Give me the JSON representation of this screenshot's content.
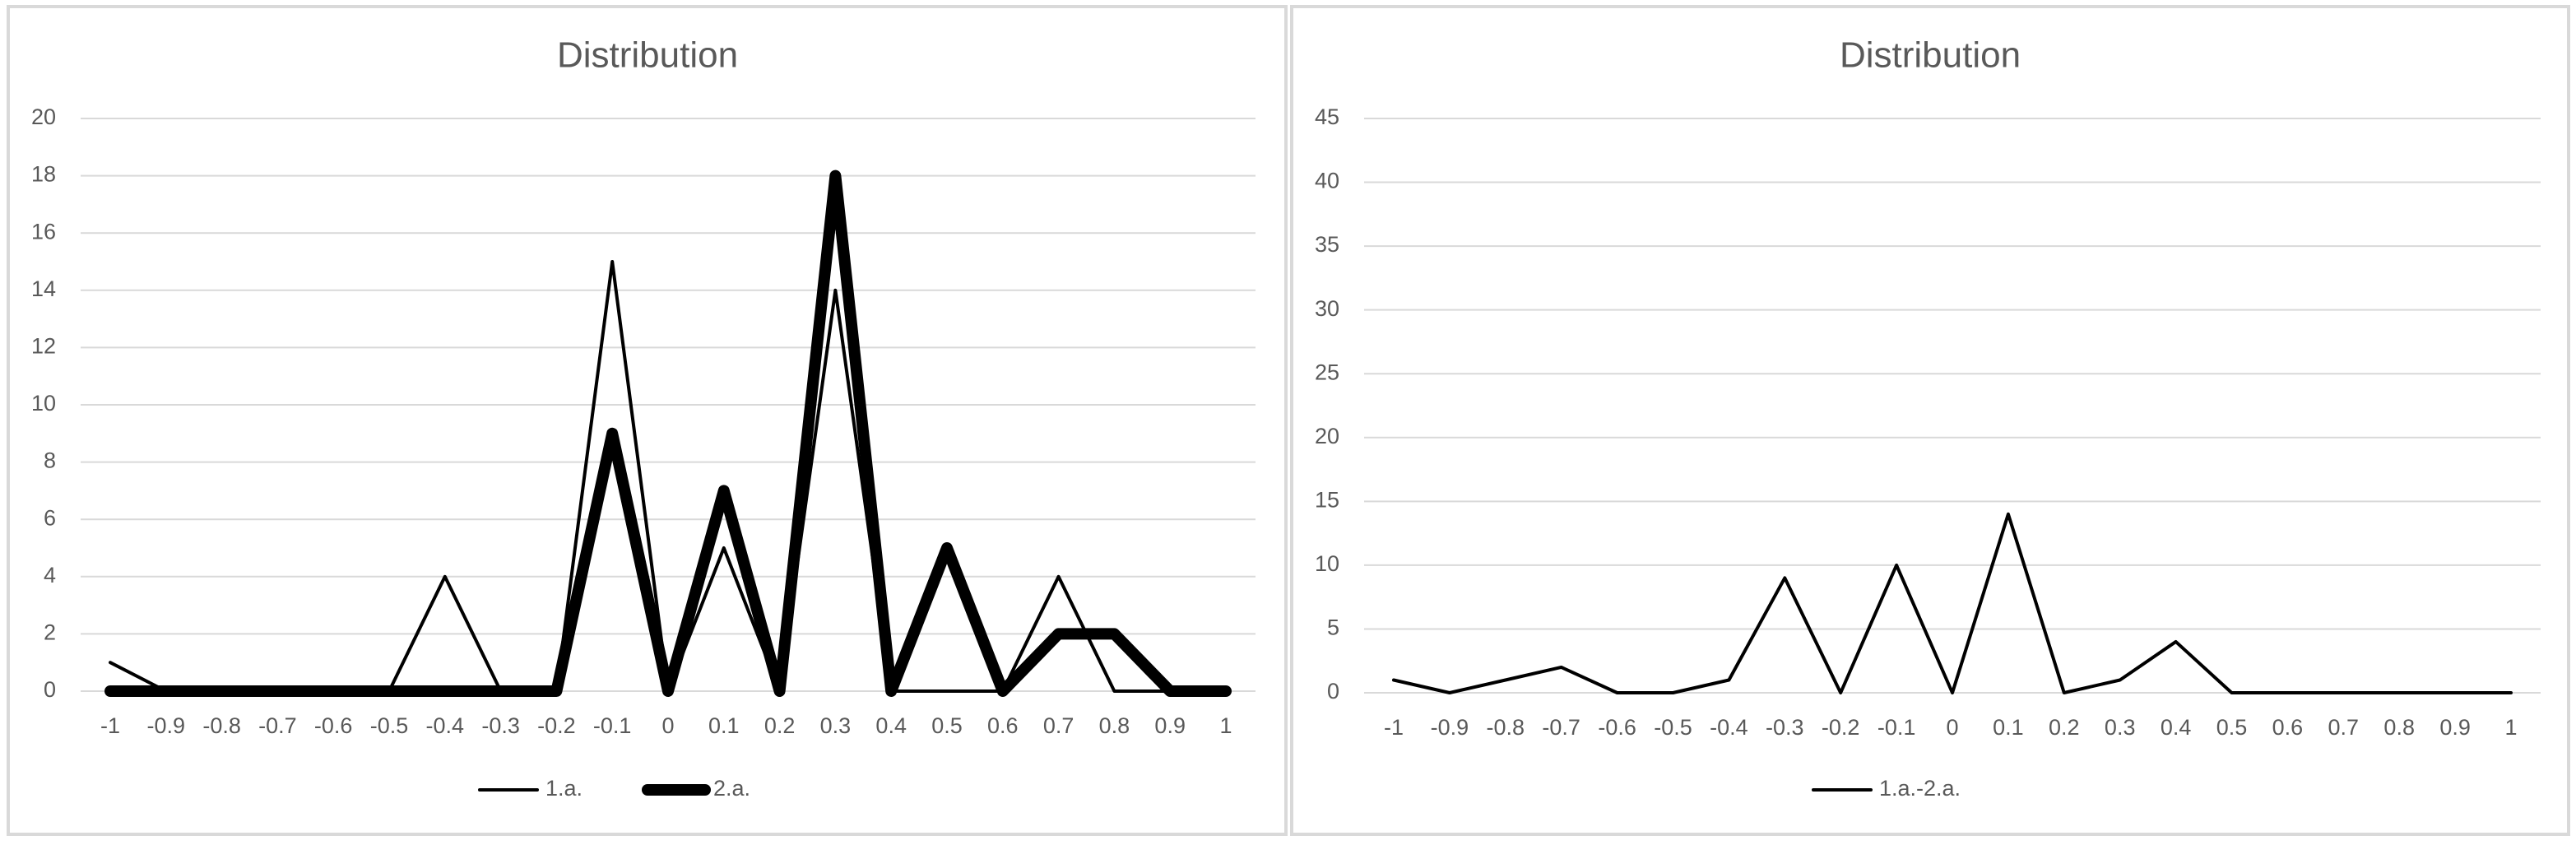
{
  "chart_data": [
    {
      "type": "line",
      "title": "Distribution",
      "categories": [
        "-1",
        "-0.9",
        "-0.8",
        "-0.7",
        "-0.6",
        "-0.5",
        "-0.4",
        "-0.3",
        "-0.2",
        "-0.1",
        "0",
        "0.1",
        "0.2",
        "0.3",
        "0.4",
        "0.5",
        "0.6",
        "0.7",
        "0.8",
        "0.9",
        "1"
      ],
      "series": [
        {
          "name": "1.a.",
          "color": "#000000",
          "line_width": 4,
          "values": [
            1,
            0,
            0,
            0,
            0,
            0,
            4,
            0,
            0,
            15,
            0,
            5,
            0,
            14,
            0,
            0,
            0,
            4,
            0,
            0,
            0
          ]
        },
        {
          "name": "2.a.",
          "color": "#000000",
          "line_width": 14,
          "values": [
            0,
            0,
            0,
            0,
            0,
            0,
            0,
            0,
            0,
            9,
            0,
            7,
            0,
            18,
            0,
            5,
            0,
            2,
            2,
            0,
            0
          ]
        }
      ],
      "ylim": [
        0,
        20
      ],
      "yticks": [
        0,
        2,
        4,
        6,
        8,
        10,
        12,
        14,
        16,
        18,
        20
      ],
      "grid": true,
      "legend": "bottom"
    },
    {
      "type": "line",
      "title": "Distribution",
      "categories": [
        "-1",
        "-0.9",
        "-0.8",
        "-0.7",
        "-0.6",
        "-0.5",
        "-0.4",
        "-0.3",
        "-0.2",
        "-0.1",
        "0",
        "0.1",
        "0.2",
        "0.3",
        "0.4",
        "0.5",
        "0.6",
        "0.7",
        "0.8",
        "0.9",
        "1"
      ],
      "series": [
        {
          "name": "1.a.-2.a.",
          "color": "#000000",
          "line_width": 4,
          "values": [
            1,
            0,
            1,
            2,
            0,
            0,
            1,
            9,
            0,
            10,
            0,
            14,
            0,
            1,
            4,
            0,
            0,
            0,
            0,
            0,
            0
          ]
        }
      ],
      "ylim": [
        0,
        45
      ],
      "yticks": [
        0,
        5,
        10,
        15,
        20,
        25,
        30,
        35,
        40,
        45
      ],
      "grid": true,
      "legend": "bottom"
    }
  ]
}
